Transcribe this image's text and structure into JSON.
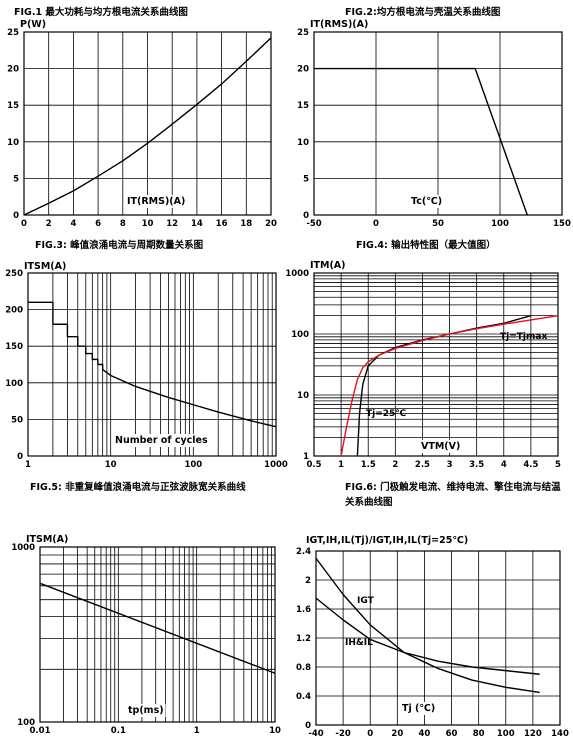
{
  "colors": {
    "line": "#000000",
    "grid": "#000000",
    "highlight": "#e8131b"
  },
  "charts": [
    {
      "id": "fig1",
      "title": "FIG.1 最大功耗与均方根电流关系曲线图",
      "chart_data": {
        "type": "line",
        "ylabel": "P(W)",
        "xlabel": "IT(RMS)(A)",
        "xlim": [
          0,
          20
        ],
        "ylim": [
          0,
          25
        ],
        "xticks": [
          0,
          2,
          4,
          6,
          8,
          10,
          12,
          14,
          16,
          18,
          20
        ],
        "yticks": [
          0,
          5,
          10,
          15,
          20,
          25
        ],
        "grid": true,
        "series": [
          {
            "color": "#000000",
            "x": [
              0,
              2,
              4,
              6,
              8,
              10,
              12,
              14,
              16,
              18,
              20
            ],
            "y": [
              0,
              1.6,
              3.3,
              5.3,
              7.4,
              9.8,
              12.4,
              15.1,
              17.9,
              21,
              24.2
            ]
          }
        ]
      }
    },
    {
      "id": "fig2",
      "title": "FIG.2:均方根电流与壳温关系曲线图",
      "chart_data": {
        "type": "line",
        "ylabel": "IT(RMS)(A)",
        "xlabel": "Tc(℃)",
        "xlim": [
          -50,
          150
        ],
        "ylim": [
          0,
          25
        ],
        "xticks": [
          -50,
          0,
          50,
          100,
          150
        ],
        "yticks": [
          0,
          5,
          10,
          15,
          20,
          25
        ],
        "grid": true,
        "series": [
          {
            "color": "#000000",
            "x": [
              -50,
              80,
              122
            ],
            "y": [
              20,
              20,
              0
            ]
          }
        ]
      }
    },
    {
      "id": "fig3",
      "title": "FIG.3: 峰值浪涌电流与周期数量关系图",
      "chart_data": {
        "type": "line",
        "ylabel": "ITSM(A)",
        "xlabel": "Number of cycles",
        "xscale": "log",
        "xlim": [
          1,
          1000
        ],
        "ylim": [
          0,
          250
        ],
        "xticks": [
          1,
          10,
          100,
          1000
        ],
        "yticks": [
          0,
          50,
          100,
          150,
          200,
          250
        ],
        "grid": true,
        "series": [
          {
            "color": "#000000",
            "x": [
              1,
              2,
              2,
              3,
              3,
              4,
              4,
              5,
              5,
              6,
              6,
              7,
              7,
              8,
              8,
              10,
              20,
              50,
              100,
              200,
              500,
              1000
            ],
            "y": [
              210,
              210,
              180,
              180,
              163,
              163,
              150,
              150,
              140,
              140,
              132,
              132,
              125,
              125,
              118,
              110,
              95,
              80,
              70,
              60,
              48,
              40
            ]
          }
        ]
      }
    },
    {
      "id": "fig4",
      "title": "FIG.4: 输出特性图（最大值图）",
      "chart_data": {
        "type": "line",
        "ylabel": "ITM(A)",
        "xlabel": "VTM(V)",
        "yscale": "log",
        "xlim": [
          0.5,
          5.0
        ],
        "ylim": [
          1,
          1000
        ],
        "xticks": [
          0.5,
          1.0,
          1.5,
          2.0,
          2.5,
          3.0,
          3.5,
          4.0,
          4.5,
          5.0
        ],
        "yticks": [
          1,
          10,
          100,
          1000
        ],
        "grid": true,
        "annotations": [
          "Tj=Tjmax",
          "Tj=25℃"
        ],
        "series": [
          {
            "name": "Tj=25℃",
            "color": "#000000",
            "x": [
              1.3,
              1.34,
              1.4,
              1.5,
              1.7,
              2.0,
              2.5,
              3.0,
              3.5,
              4.0,
              4.5
            ],
            "y": [
              1,
              5,
              15,
              30,
              45,
              60,
              80,
              100,
              125,
              150,
              200
            ]
          },
          {
            "name": "Tj=Tjmax",
            "color": "#e8131b",
            "x": [
              1.0,
              1.1,
              1.2,
              1.3,
              1.4,
              1.5,
              1.7,
              2.0,
              2.5,
              3.0,
              3.5,
              4.0,
              4.5,
              5.0
            ],
            "y": [
              1,
              3,
              8,
              18,
              28,
              35,
              45,
              58,
              78,
              100,
              122,
              145,
              170,
              200
            ]
          }
        ]
      }
    },
    {
      "id": "fig5",
      "title": "FIG.5: 非重复峰值浪涌电流与正弦波脉宽关系曲线",
      "chart_data": {
        "type": "line",
        "ylabel": "ITSM(A)",
        "xlabel": "tp(ms)",
        "xscale": "log",
        "yscale": "log",
        "xlim": [
          0.01,
          10
        ],
        "ylim": [
          100,
          1000
        ],
        "xticks": [
          0.01,
          0.1,
          1,
          10
        ],
        "yticks": [
          100,
          1000
        ],
        "grid": true,
        "series": [
          {
            "color": "#000000",
            "x": [
              0.01,
              10
            ],
            "y": [
              620,
              190
            ]
          }
        ]
      }
    },
    {
      "id": "fig6",
      "title": "FIG.6: 门极触发电流、维持电流、擎住电流与结温关系曲线图",
      "chart_data": {
        "type": "line",
        "ylabel": "IGT,IH,IL(Tj)/IGT,IH,IL(Tj=25℃)",
        "xlabel": "Tj (℃)",
        "xlim": [
          -40,
          140
        ],
        "ylim": [
          0,
          2.4
        ],
        "xticks": [
          -40,
          -20,
          0,
          20,
          40,
          60,
          80,
          100,
          120,
          140
        ],
        "yticks": [
          0,
          0.4,
          0.8,
          1.2,
          1.6,
          2.0,
          2.4
        ],
        "grid": true,
        "series": [
          {
            "name": "IGT",
            "color": "#000000",
            "x": [
              -40,
              -20,
              0,
              25,
              50,
              75,
              100,
              125
            ],
            "y": [
              2.3,
              1.8,
              1.38,
              1.0,
              0.78,
              0.62,
              0.52,
              0.45
            ]
          },
          {
            "name": "IH&IL",
            "color": "#000000",
            "x": [
              -40,
              -20,
              0,
              25,
              50,
              75,
              100,
              125
            ],
            "y": [
              1.75,
              1.45,
              1.18,
              1.0,
              0.88,
              0.8,
              0.75,
              0.7
            ]
          }
        ]
      }
    }
  ]
}
